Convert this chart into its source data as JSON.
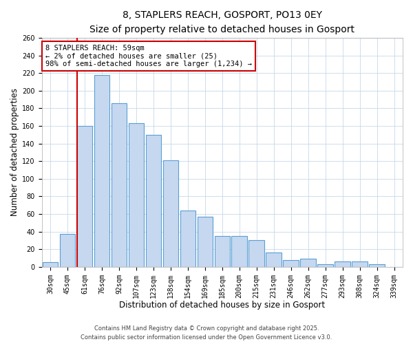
{
  "title": "8, STAPLERS REACH, GOSPORT, PO13 0EY",
  "subtitle": "Size of property relative to detached houses in Gosport",
  "xlabel": "Distribution of detached houses by size in Gosport",
  "ylabel": "Number of detached properties",
  "bar_labels": [
    "30sqm",
    "45sqm",
    "61sqm",
    "76sqm",
    "92sqm",
    "107sqm",
    "123sqm",
    "138sqm",
    "154sqm",
    "169sqm",
    "185sqm",
    "200sqm",
    "215sqm",
    "231sqm",
    "246sqm",
    "262sqm",
    "277sqm",
    "293sqm",
    "308sqm",
    "324sqm",
    "339sqm"
  ],
  "bar_values": [
    5,
    37,
    160,
    218,
    186,
    163,
    150,
    121,
    64,
    57,
    35,
    35,
    30,
    16,
    8,
    9,
    3,
    6,
    6,
    3,
    0
  ],
  "bar_color": "#c5d8f0",
  "bar_edge_color": "#5a9fd4",
  "vline_index": 2,
  "vline_color": "#cc0000",
  "ylim": [
    0,
    260
  ],
  "yticks": [
    0,
    20,
    40,
    60,
    80,
    100,
    120,
    140,
    160,
    180,
    200,
    220,
    240,
    260
  ],
  "annotation_title": "8 STAPLERS REACH: 59sqm",
  "annotation_line1": "← 2% of detached houses are smaller (25)",
  "annotation_line2": "98% of semi-detached houses are larger (1,234) →",
  "annotation_box_color": "#ffffff",
  "annotation_border_color": "#cc0000",
  "footnote1": "Contains HM Land Registry data © Crown copyright and database right 2025.",
  "footnote2": "Contains public sector information licensed under the Open Government Licence v3.0.",
  "background_color": "#ffffff",
  "grid_color": "#c8d8e8",
  "title_fontsize": 10,
  "subtitle_fontsize": 9,
  "axis_label_fontsize": 8.5,
  "tick_fontsize": 7,
  "footnote_fontsize": 6
}
